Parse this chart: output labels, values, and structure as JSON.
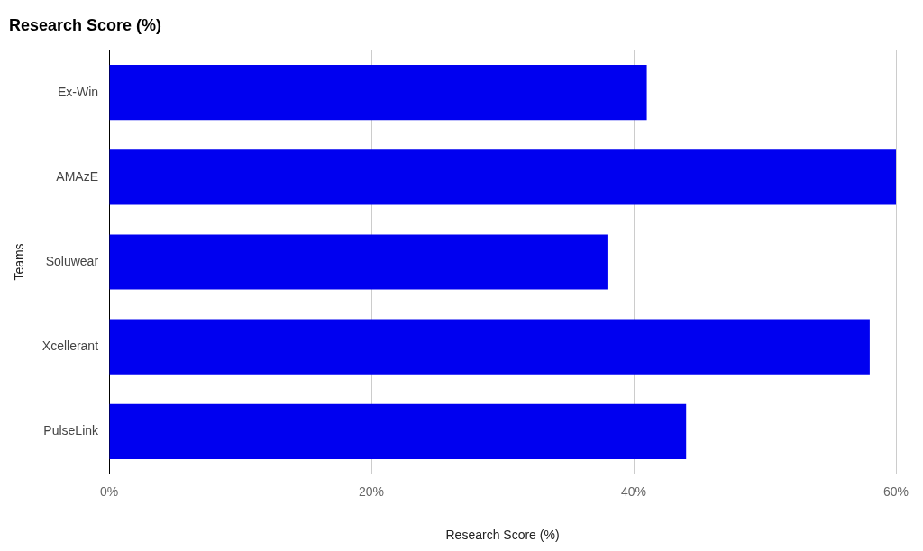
{
  "chart_data": {
    "type": "bar",
    "orientation": "horizontal",
    "title": "Research Score (%)",
    "xlabel": "Research Score (%)",
    "ylabel": "Teams",
    "categories": [
      "Ex-Win",
      "AMAzE",
      "Soluwear",
      "Xcellerant",
      "PulseLink"
    ],
    "values": [
      41,
      60,
      38,
      58,
      44
    ],
    "color": "#0000f0",
    "xlim": [
      0,
      60
    ],
    "xticks": [
      {
        "value": 0,
        "label": "0%"
      },
      {
        "value": 20,
        "label": "20%"
      },
      {
        "value": 40,
        "label": "40%"
      },
      {
        "value": 60,
        "label": "60%"
      }
    ],
    "grid": "x",
    "legend": false
  }
}
